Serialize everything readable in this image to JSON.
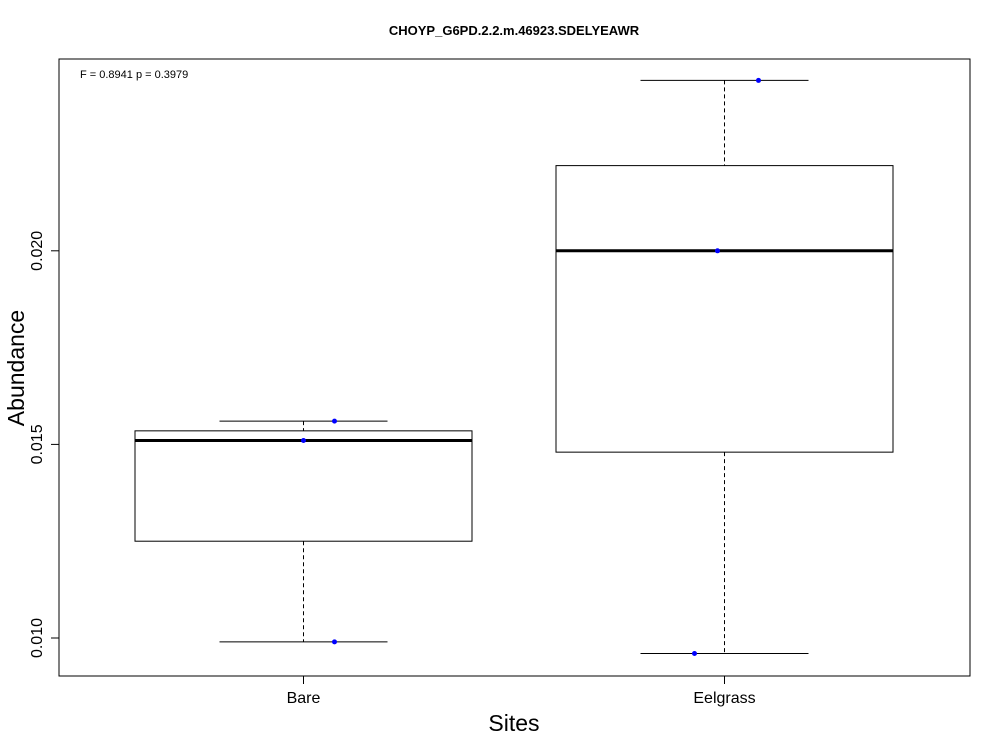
{
  "chart_data": {
    "type": "box",
    "title": "CHOYP_G6PD.2.2.m.46923.SDELYEAWR",
    "xlabel": "Sites",
    "ylabel": "Abundance",
    "annotation": "F = 0.8941 p = 0.3979",
    "categories": [
      "Bare",
      "Eelgrass"
    ],
    "y_ticks": [
      0.01,
      0.015,
      0.02
    ],
    "y_tick_labels": [
      "0.010",
      "0.015",
      "0.020"
    ],
    "ylim": [
      0.0092,
      0.0251
    ],
    "boxes": [
      {
        "category": "Bare",
        "whisker_low": 0.0099,
        "q1": 0.0125,
        "median": 0.0151,
        "q3": 0.01535,
        "whisker_high": 0.0156,
        "points": [
          0.0156,
          0.0151,
          0.0099
        ]
      },
      {
        "category": "Eelgrass",
        "whisker_low": 0.0096,
        "q1": 0.0148,
        "median": 0.02,
        "q3": 0.0222,
        "whisker_high": 0.0244,
        "points": [
          0.0244,
          0.02,
          0.0096
        ]
      }
    ],
    "point_color": "#0000ff",
    "grid": false,
    "legend": "none"
  }
}
